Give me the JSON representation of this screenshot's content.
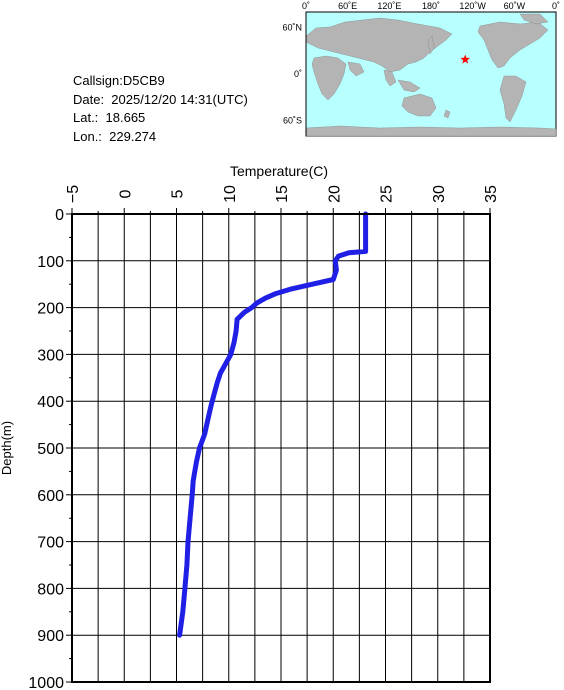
{
  "info": {
    "callsign": "Callsign:D5CB9",
    "date": "Date:  2025/12/20 14:31(UTC)",
    "lat": "Lat.:  18.665",
    "lon": "Lon.:  229.274"
  },
  "map": {
    "lon_labels": [
      "0˚",
      "60˚E",
      "120˚E",
      "180˚",
      "120˚W",
      "60˚W",
      "0˚"
    ],
    "lat_labels": [
      "60˚N",
      "0˚",
      "60˚S"
    ],
    "ocean_color": "#b8ffff",
    "land_color": "#b4b4b4",
    "marker": {
      "symbol": "star",
      "lat": 18.665,
      "lon": 229.274,
      "color": "#ff0000"
    }
  },
  "chart_data": {
    "type": "line",
    "xlabel": "Temperature(C)",
    "ylabel": "Depth(m)",
    "xlim": [
      -5,
      35
    ],
    "ylim": [
      0,
      1000
    ],
    "x_ticks": [
      "-5",
      "0",
      "5",
      "10",
      "15",
      "20",
      "25",
      "30",
      "35"
    ],
    "y_ticks": [
      "0",
      "100",
      "200",
      "300",
      "400",
      "500",
      "600",
      "700",
      "800",
      "900",
      "1000"
    ],
    "y_inverted": true,
    "x_axis_position": "top",
    "grid": true,
    "series_color": "#1f1fe6",
    "series": [
      {
        "points": [
          [
            23.1,
            0
          ],
          [
            23.1,
            40
          ],
          [
            23.1,
            80
          ],
          [
            21.5,
            83
          ],
          [
            20.5,
            90
          ],
          [
            20.2,
            100
          ],
          [
            20.3,
            120
          ],
          [
            20.0,
            140
          ],
          [
            18.0,
            150
          ],
          [
            16.0,
            160
          ],
          [
            14.5,
            170
          ],
          [
            13.5,
            180
          ],
          [
            12.7,
            190
          ],
          [
            12.2,
            200
          ],
          [
            11.5,
            210
          ],
          [
            10.8,
            225
          ],
          [
            10.7,
            250
          ],
          [
            10.5,
            275
          ],
          [
            10.2,
            300
          ],
          [
            9.7,
            320
          ],
          [
            9.2,
            340
          ],
          [
            8.9,
            360
          ],
          [
            8.6,
            385
          ],
          [
            8.3,
            410
          ],
          [
            8.0,
            440
          ],
          [
            7.7,
            470
          ],
          [
            7.2,
            500
          ],
          [
            6.9,
            530
          ],
          [
            6.6,
            570
          ],
          [
            6.5,
            600
          ],
          [
            6.3,
            650
          ],
          [
            6.1,
            700
          ],
          [
            6.0,
            750
          ],
          [
            5.8,
            800
          ],
          [
            5.6,
            850
          ],
          [
            5.3,
            900
          ]
        ]
      }
    ]
  }
}
